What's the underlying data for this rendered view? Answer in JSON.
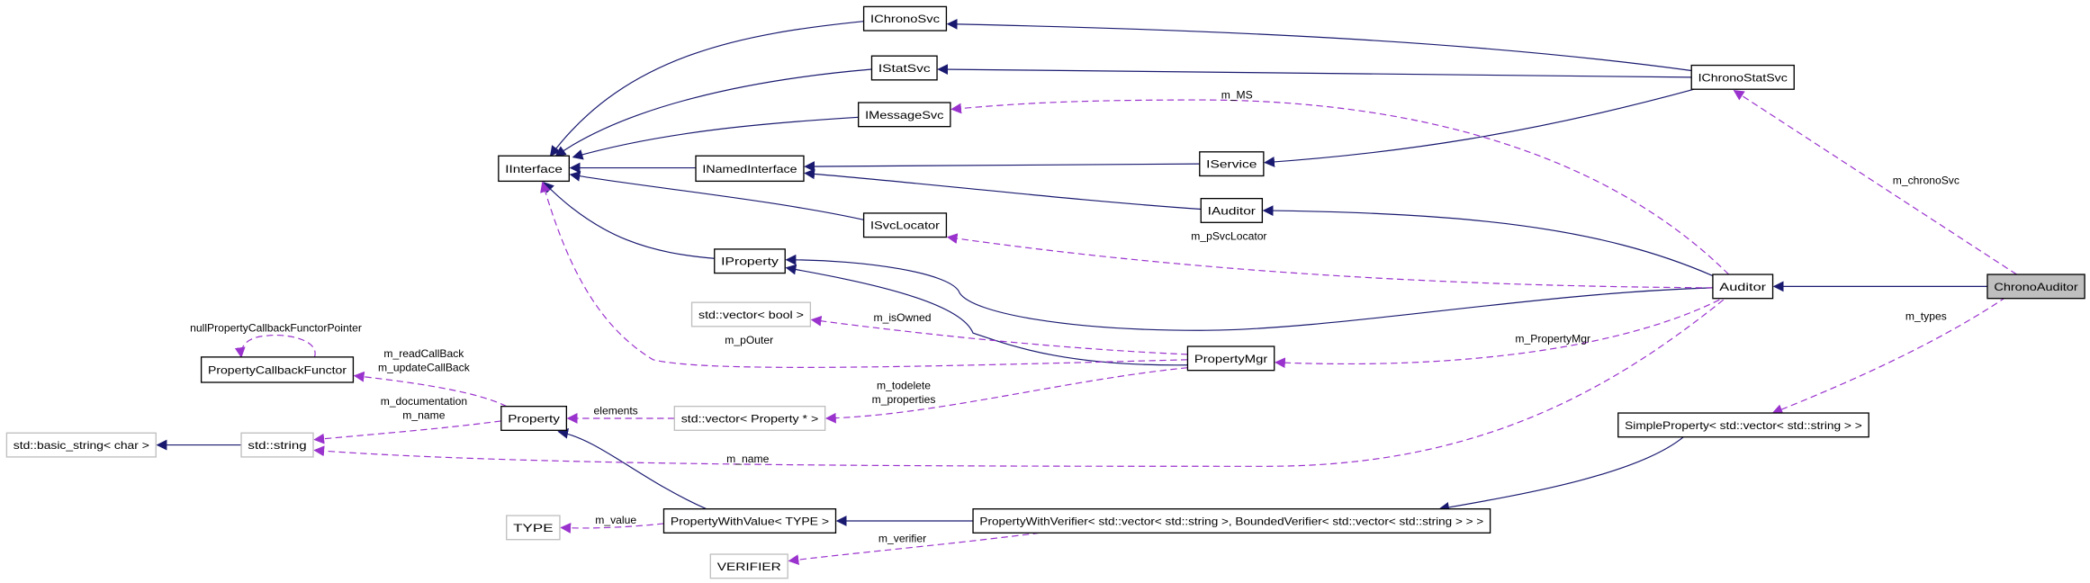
{
  "colors": {
    "inheritance_edge": "#191970",
    "usage_edge": "#9a32cd",
    "focus_node_fill": "#bfbfbf",
    "external_node_border": "#bfbfbf",
    "documented_node_border": "#000000"
  },
  "nodes": [
    {
      "id": "IChronoSvc",
      "label": "IChronoSvc",
      "style": "documented"
    },
    {
      "id": "IStatSvc",
      "label": "IStatSvc",
      "style": "documented"
    },
    {
      "id": "IMessageSvc",
      "label": "IMessageSvc",
      "style": "documented"
    },
    {
      "id": "IInterface",
      "label": "IInterface",
      "style": "documented"
    },
    {
      "id": "INamedInterface",
      "label": "INamedInterface",
      "style": "documented"
    },
    {
      "id": "IService",
      "label": "IService",
      "style": "documented"
    },
    {
      "id": "IChronoStatSvc",
      "label": "IChronoStatSvc",
      "style": "documented"
    },
    {
      "id": "IAuditor",
      "label": "IAuditor",
      "style": "documented"
    },
    {
      "id": "ISvcLocator",
      "label": "ISvcLocator",
      "style": "documented"
    },
    {
      "id": "IProperty",
      "label": "IProperty",
      "style": "documented"
    },
    {
      "id": "Auditor",
      "label": "Auditor",
      "style": "documented"
    },
    {
      "id": "ChronoAuditor",
      "label": "ChronoAuditor",
      "style": "focus"
    },
    {
      "id": "VecBool",
      "label": "std::vector< bool >",
      "style": "external"
    },
    {
      "id": "PropertyMgr",
      "label": "PropertyMgr",
      "style": "documented"
    },
    {
      "id": "PropertyCallbackFunctor",
      "label": "PropertyCallbackFunctor",
      "style": "documented"
    },
    {
      "id": "Property",
      "label": "Property",
      "style": "documented"
    },
    {
      "id": "VecProperty",
      "label": "std::vector< Property * >",
      "style": "external"
    },
    {
      "id": "BasicString",
      "label": "std::basic_string< char >",
      "style": "external"
    },
    {
      "id": "StdString",
      "label": "std::string",
      "style": "external"
    },
    {
      "id": "SimpleProperty",
      "label": "SimpleProperty< std::vector< std::string > >",
      "style": "documented"
    },
    {
      "id": "PropertyWithValue",
      "label": "PropertyWithValue< TYPE >",
      "style": "documented"
    },
    {
      "id": "PropertyWithVerifier",
      "label": "PropertyWithVerifier< std::vector< std::string >, BoundedVerifier< std::vector< std::string > > >",
      "style": "documented"
    },
    {
      "id": "TYPE",
      "label": "TYPE",
      "style": "external"
    },
    {
      "id": "VERIFIER",
      "label": "VERIFIER",
      "style": "external"
    }
  ],
  "edges": [
    {
      "from": "IChronoSvc",
      "to": "IInterface",
      "kind": "inheritance",
      "labels": []
    },
    {
      "from": "IStatSvc",
      "to": "IInterface",
      "kind": "inheritance",
      "labels": []
    },
    {
      "from": "IMessageSvc",
      "to": "IInterface",
      "kind": "inheritance",
      "labels": []
    },
    {
      "from": "INamedInterface",
      "to": "IInterface",
      "kind": "inheritance",
      "labels": []
    },
    {
      "from": "ISvcLocator",
      "to": "IInterface",
      "kind": "inheritance",
      "labels": []
    },
    {
      "from": "IProperty",
      "to": "IInterface",
      "kind": "inheritance",
      "labels": []
    },
    {
      "from": "IChronoStatSvc",
      "to": "IChronoSvc",
      "kind": "inheritance",
      "labels": []
    },
    {
      "from": "IChronoStatSvc",
      "to": "IStatSvc",
      "kind": "inheritance",
      "labels": []
    },
    {
      "from": "IChronoStatSvc",
      "to": "IService",
      "kind": "inheritance",
      "labels": []
    },
    {
      "from": "IService",
      "to": "INamedInterface",
      "kind": "inheritance",
      "labels": []
    },
    {
      "from": "IAuditor",
      "to": "INamedInterface",
      "kind": "inheritance",
      "labels": []
    },
    {
      "from": "Auditor",
      "to": "IAuditor",
      "kind": "inheritance",
      "labels": []
    },
    {
      "from": "Auditor",
      "to": "IProperty",
      "kind": "inheritance",
      "labels": []
    },
    {
      "from": "PropertyMgr",
      "to": "IProperty",
      "kind": "inheritance",
      "labels": []
    },
    {
      "from": "ChronoAuditor",
      "to": "Auditor",
      "kind": "inheritance",
      "labels": []
    },
    {
      "from": "PropertyWithValue",
      "to": "Property",
      "kind": "inheritance",
      "labels": []
    },
    {
      "from": "PropertyWithVerifier",
      "to": "PropertyWithValue",
      "kind": "inheritance",
      "labels": []
    },
    {
      "from": "SimpleProperty",
      "to": "PropertyWithVerifier",
      "kind": "inheritance",
      "labels": []
    },
    {
      "from": "StdString",
      "to": "BasicString",
      "kind": "inheritance",
      "labels": []
    },
    {
      "from": "Auditor",
      "to": "IMessageSvc",
      "kind": "usage",
      "labels": [
        "m_MS"
      ]
    },
    {
      "from": "ChronoAuditor",
      "to": "IChronoStatSvc",
      "kind": "usage",
      "labels": [
        "m_chronoSvc"
      ]
    },
    {
      "from": "Auditor",
      "to": "ISvcLocator",
      "kind": "usage",
      "labels": [
        "m_pSvcLocator"
      ]
    },
    {
      "from": "Auditor",
      "to": "PropertyMgr",
      "kind": "usage",
      "labels": [
        "m_PropertyMgr"
      ]
    },
    {
      "from": "ChronoAuditor",
      "to": "SimpleProperty",
      "kind": "usage",
      "labels": [
        "m_types"
      ]
    },
    {
      "from": "PropertyMgr",
      "to": "VecBool",
      "kind": "usage",
      "labels": [
        "m_isOwned"
      ]
    },
    {
      "from": "PropertyMgr",
      "to": "IInterface",
      "kind": "usage",
      "labels": [
        "m_pOuter"
      ]
    },
    {
      "from": "PropertyMgr",
      "to": "VecProperty",
      "kind": "usage",
      "labels": [
        "m_todelete",
        "m_properties"
      ]
    },
    {
      "from": "VecProperty",
      "to": "Property",
      "kind": "usage",
      "labels": [
        "elements"
      ]
    },
    {
      "from": "Property",
      "to": "PropertyCallbackFunctor",
      "kind": "usage",
      "labels": [
        "m_readCallBack",
        "m_updateCallBack"
      ]
    },
    {
      "from": "Property",
      "to": "StdString",
      "kind": "usage",
      "labels": [
        "m_documentation",
        "m_name"
      ]
    },
    {
      "from": "Auditor",
      "to": "StdString",
      "kind": "usage",
      "labels": [
        "m_name"
      ]
    },
    {
      "from": "PropertyCallbackFunctor",
      "to": "PropertyCallbackFunctor",
      "kind": "usage",
      "labels": [
        "nullPropertyCallbackFunctorPointer"
      ]
    },
    {
      "from": "PropertyWithValue",
      "to": "TYPE",
      "kind": "usage",
      "labels": [
        "m_value"
      ]
    },
    {
      "from": "PropertyWithVerifier",
      "to": "VERIFIER",
      "kind": "usage",
      "labels": [
        "m_verifier"
      ]
    }
  ]
}
